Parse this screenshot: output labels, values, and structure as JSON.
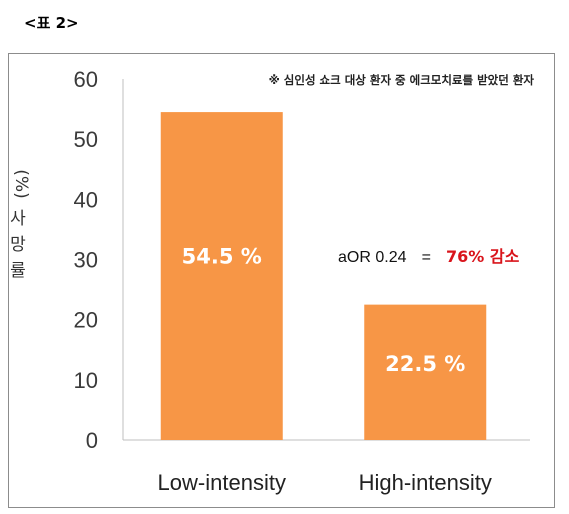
{
  "caption": "<표 2>",
  "chart_data": {
    "type": "bar",
    "categories": [
      "Low-intensity",
      "High-intensity"
    ],
    "values": [
      54.5,
      22.5
    ],
    "data_labels": [
      "54.5 %",
      "22.5 %"
    ],
    "ylabel_unit": "(%)",
    "ylabel_chars": [
      "사",
      "망",
      "률"
    ],
    "ylim": [
      0,
      60
    ],
    "yticks": [
      0,
      10,
      20,
      30,
      40,
      50,
      60
    ],
    "grid": false,
    "bar_color": "#f79646",
    "note": "※ 심인성 쇼크 대상 환자 중 에크모치료를 받았던 환자",
    "annotation": {
      "prefix": "aOR 0.24",
      "equals": "=",
      "highlight": "76% 감소",
      "highlight_color": "#d9141b"
    }
  }
}
